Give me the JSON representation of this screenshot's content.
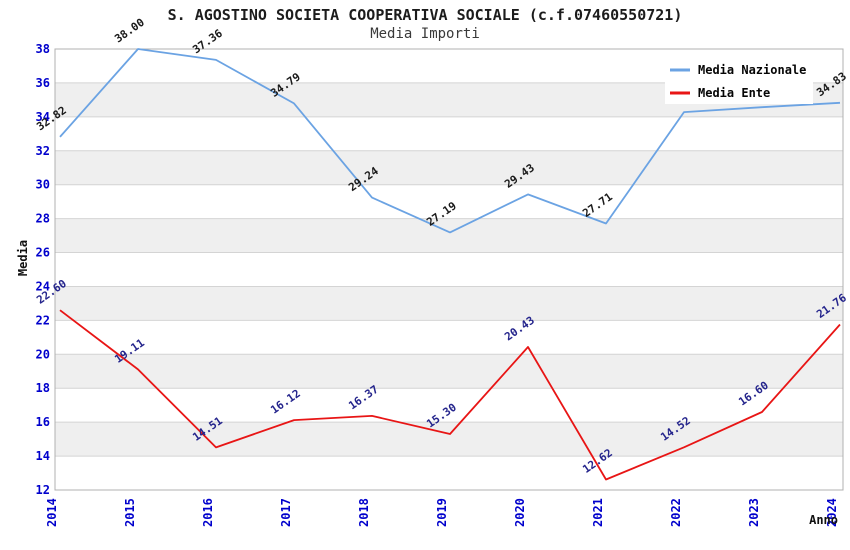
{
  "page": {
    "background": "#ffffff"
  },
  "chart_data": {
    "type": "line",
    "title": "S. AGOSTINO SOCIETA COOPERATIVA SOCIALE (c.f.07460550721)",
    "subtitle": "Media Importi",
    "xlabel": "Anno",
    "ylabel": "Media",
    "x": [
      "2014",
      "2015",
      "2016",
      "2017",
      "2018",
      "2019",
      "2020",
      "2021",
      "2022",
      "2023",
      "2024"
    ],
    "ylim": [
      12,
      38
    ],
    "ytick_step": 2,
    "grid": "horizontal-gridlines-with-alternating-bands",
    "legend_position": "top-right-inside",
    "series": [
      {
        "name": "Media Nazionale",
        "color": "#6ba3e3",
        "label_color": "#1a1a1a",
        "values": [
          32.82,
          38.0,
          37.36,
          34.79,
          29.24,
          27.19,
          29.43,
          27.71,
          34.28,
          34.57,
          34.83
        ],
        "point_labels": [
          "32.82",
          "38.00",
          "37.36",
          "34.79",
          "29.24",
          "27.19",
          "29.43",
          "27.71",
          "",
          "",
          "34.83"
        ]
      },
      {
        "name": "Media Ente",
        "color": "#e81515",
        "label_color": "#24248c",
        "values": [
          22.6,
          19.11,
          14.51,
          16.12,
          16.37,
          15.3,
          20.43,
          12.62,
          14.52,
          16.6,
          21.76
        ],
        "point_labels": [
          "22.60",
          "19.11",
          "14.51",
          "16.12",
          "16.37",
          "15.30",
          "20.43",
          "12.62",
          "14.52",
          "16.60",
          "21.76"
        ]
      }
    ],
    "colors": {
      "tick_label": "#0000cc",
      "band_gray": "#efefef",
      "band_white": "#ffffff",
      "grid_line": "#d4d4d4",
      "plot_border": "#b0b0b0",
      "legend_background": "#ffffff"
    }
  }
}
